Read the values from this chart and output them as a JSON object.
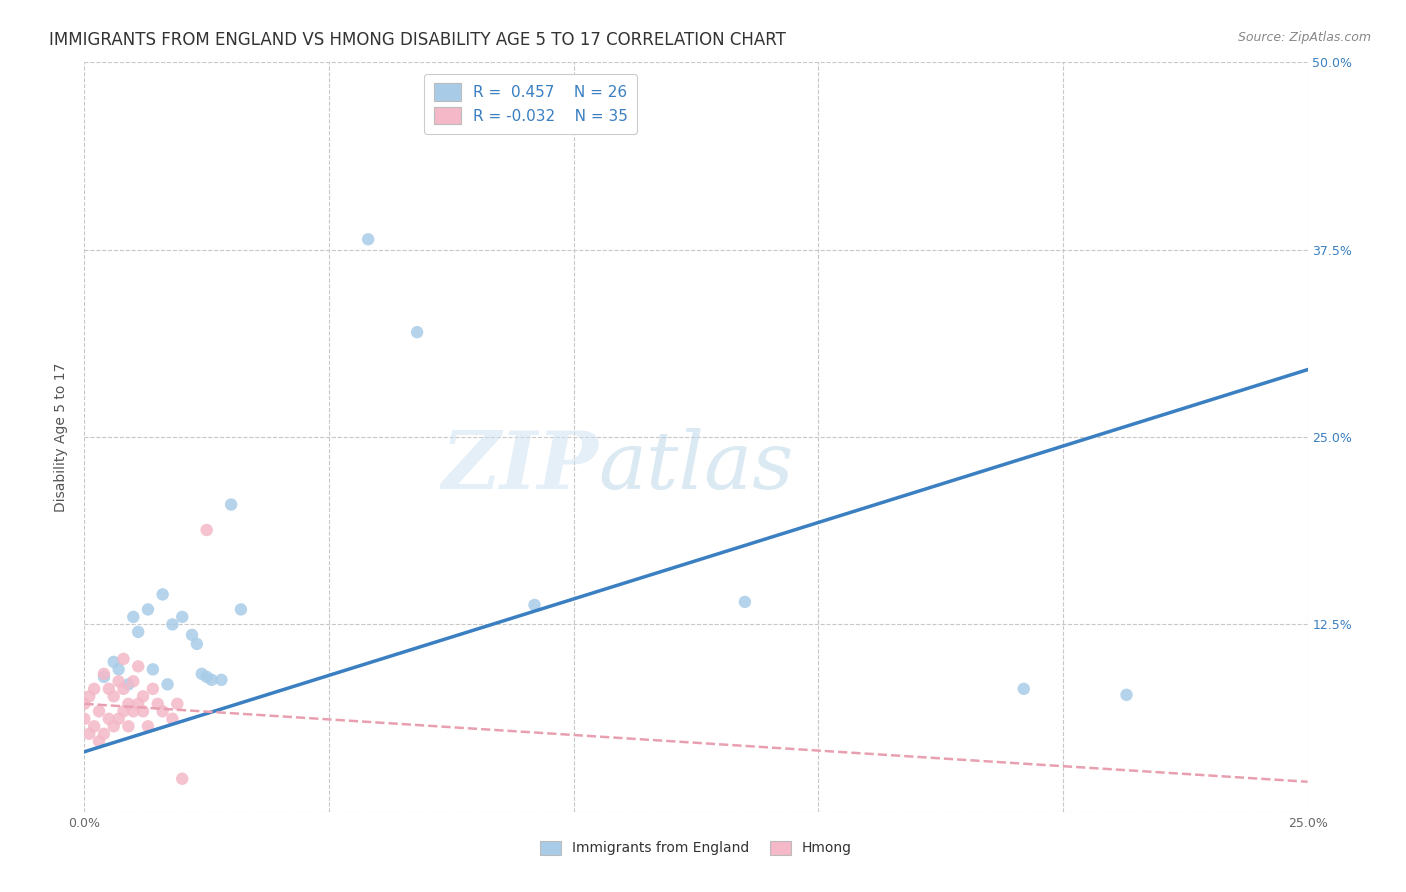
{
  "title": "IMMIGRANTS FROM ENGLAND VS HMONG DISABILITY AGE 5 TO 17 CORRELATION CHART",
  "source": "Source: ZipAtlas.com",
  "ylabel": "Disability Age 5 to 17",
  "xlabel_legend1": "Immigrants from England",
  "xlabel_legend2": "Hmong",
  "xmin": 0.0,
  "xmax": 0.25,
  "ymin": 0.0,
  "ymax": 0.5,
  "xticks": [
    0.0,
    0.05,
    0.1,
    0.15,
    0.2,
    0.25
  ],
  "yticks": [
    0.0,
    0.125,
    0.25,
    0.375,
    0.5
  ],
  "xtick_labels": [
    "0.0%",
    "",
    "",
    "",
    "",
    "25.0%"
  ],
  "ytick_labels": [
    "",
    "12.5%",
    "25.0%",
    "37.5%",
    "50.0%"
  ],
  "R_blue": 0.457,
  "N_blue": 26,
  "R_pink": -0.032,
  "N_pink": 35,
  "blue_color": "#a8cce8",
  "pink_color": "#f4b8c8",
  "blue_line_color": "#3a7fc1",
  "pink_line_color": "#e8a0b0",
  "watermark_zip": "ZIP",
  "watermark_atlas": "atlas",
  "blue_scatter_x": [
    0.004,
    0.006,
    0.007,
    0.009,
    0.01,
    0.011,
    0.013,
    0.014,
    0.016,
    0.017,
    0.018,
    0.02,
    0.022,
    0.023,
    0.024,
    0.025,
    0.026,
    0.028,
    0.03,
    0.032,
    0.058,
    0.068,
    0.092,
    0.135,
    0.192,
    0.213
  ],
  "blue_scatter_y": [
    0.09,
    0.1,
    0.095,
    0.085,
    0.13,
    0.12,
    0.135,
    0.095,
    0.145,
    0.085,
    0.125,
    0.13,
    0.118,
    0.112,
    0.092,
    0.09,
    0.088,
    0.088,
    0.205,
    0.135,
    0.382,
    0.32,
    0.138,
    0.14,
    0.082,
    0.078
  ],
  "pink_scatter_x": [
    0.0,
    0.0,
    0.001,
    0.001,
    0.002,
    0.002,
    0.003,
    0.003,
    0.004,
    0.004,
    0.005,
    0.005,
    0.006,
    0.006,
    0.007,
    0.007,
    0.008,
    0.008,
    0.008,
    0.009,
    0.009,
    0.01,
    0.01,
    0.011,
    0.011,
    0.012,
    0.012,
    0.013,
    0.014,
    0.015,
    0.016,
    0.018,
    0.019,
    0.02,
    0.025
  ],
  "pink_scatter_y": [
    0.062,
    0.072,
    0.052,
    0.077,
    0.057,
    0.082,
    0.047,
    0.067,
    0.052,
    0.092,
    0.062,
    0.082,
    0.057,
    0.077,
    0.062,
    0.087,
    0.067,
    0.082,
    0.102,
    0.057,
    0.072,
    0.067,
    0.087,
    0.072,
    0.097,
    0.067,
    0.077,
    0.057,
    0.082,
    0.072,
    0.067,
    0.062,
    0.072,
    0.022,
    0.188
  ],
  "blue_trend_x": [
    0.0,
    0.25
  ],
  "blue_trend_y": [
    0.04,
    0.295
  ],
  "pink_trend_x": [
    0.0,
    0.25
  ],
  "pink_trend_y": [
    0.072,
    0.02
  ],
  "background_color": "#ffffff",
  "grid_color": "#c8c8c8",
  "title_fontsize": 12,
  "axis_fontsize": 10,
  "tick_fontsize": 9,
  "legend_fontsize": 11,
  "scatter_size": 80
}
